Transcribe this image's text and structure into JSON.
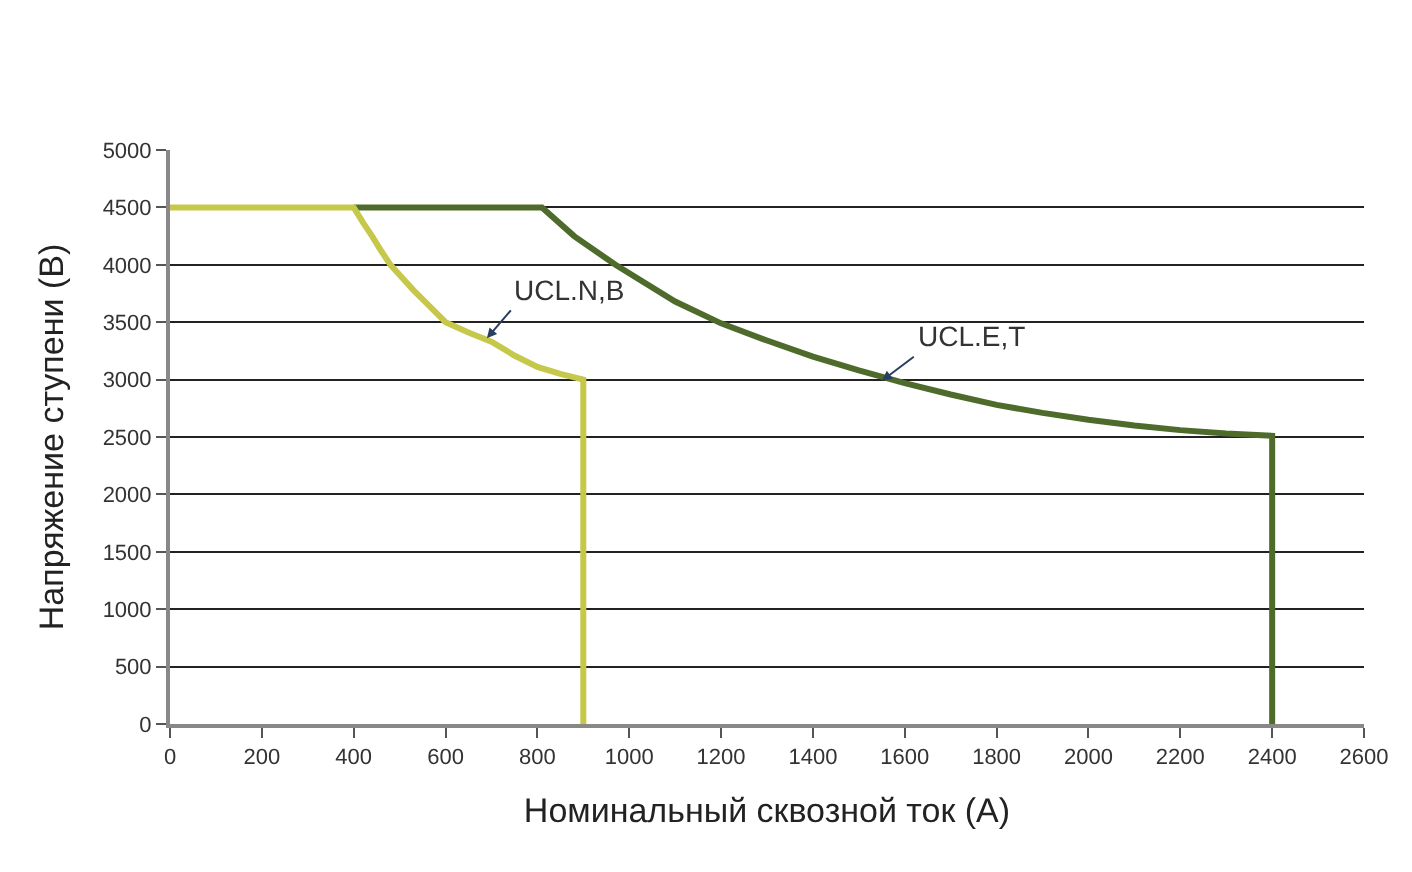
{
  "chart_data": {
    "type": "line",
    "xlabel": "Номинальный сквозной ток (А)",
    "ylabel": "Напряжение ступени (В)",
    "xlim": [
      0,
      2600
    ],
    "xticks": [
      0,
      200,
      400,
      600,
      800,
      1000,
      1200,
      1400,
      1600,
      1800,
      2000,
      2200,
      2400,
      2600
    ],
    "ylim": [
      0,
      5000
    ],
    "yticks": [
      0,
      500,
      1000,
      1500,
      2000,
      2500,
      3000,
      3500,
      4000,
      4500,
      5000
    ],
    "grid": "y",
    "marker": "none",
    "line_style": "solid",
    "series": [
      {
        "color": "#4e6b2c",
        "x": [
          400,
          810,
          880,
          970,
          1100,
          1200,
          1300,
          1400,
          1500,
          1600,
          1700,
          1800,
          1900,
          2000,
          2100,
          2200,
          2300,
          2400,
          2400
        ],
        "values": [
          4500,
          4500,
          4250,
          4000,
          3680,
          3490,
          3340,
          3200,
          3080,
          2970,
          2870,
          2780,
          2710,
          2650,
          2600,
          2560,
          2530,
          2510,
          0
        ]
      },
      {
        "color": "#c5c84a",
        "x": [
          0,
          400,
          420,
          440,
          460,
          480,
          505,
          530,
          565,
          600,
          650,
          700,
          750,
          800,
          850,
          900,
          900
        ],
        "values": [
          4500,
          4500,
          4370,
          4250,
          4120,
          4000,
          3890,
          3780,
          3640,
          3500,
          3410,
          3330,
          3210,
          3110,
          3050,
          3000,
          0
        ]
      }
    ],
    "annotations": [
      {
        "text": "UCL.N,B",
        "x": 690,
        "y": 3360
      },
      {
        "text": "UCL.E,T",
        "x": 1550,
        "y": 2990
      }
    ]
  }
}
